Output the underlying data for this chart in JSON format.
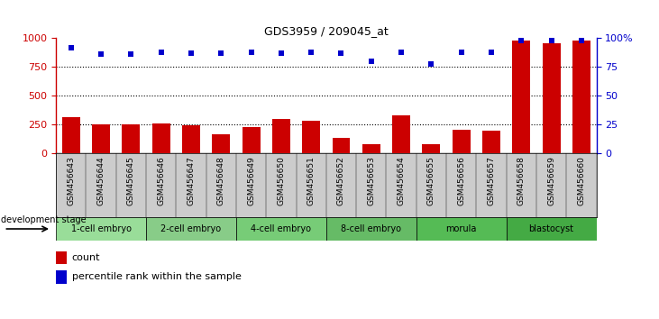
{
  "title": "GDS3959 / 209045_at",
  "samples": [
    "GSM456643",
    "GSM456644",
    "GSM456645",
    "GSM456646",
    "GSM456647",
    "GSM456648",
    "GSM456649",
    "GSM456650",
    "GSM456651",
    "GSM456652",
    "GSM456653",
    "GSM456654",
    "GSM456655",
    "GSM456656",
    "GSM456657",
    "GSM456658",
    "GSM456659",
    "GSM456660"
  ],
  "counts": [
    310,
    250,
    250,
    260,
    245,
    165,
    230,
    300,
    285,
    135,
    80,
    330,
    75,
    200,
    195,
    980,
    960,
    980
  ],
  "percentiles": [
    92,
    86,
    86,
    88,
    87,
    87,
    88,
    87,
    88,
    87,
    80,
    88,
    78,
    88,
    88,
    98,
    98,
    98
  ],
  "stages": [
    {
      "label": "1-cell embryo",
      "start": 0,
      "end": 3,
      "color": "#99dd99"
    },
    {
      "label": "2-cell embryo",
      "start": 3,
      "end": 6,
      "color": "#88cc88"
    },
    {
      "label": "4-cell embryo",
      "start": 6,
      "end": 9,
      "color": "#77cc77"
    },
    {
      "label": "8-cell embryo",
      "start": 9,
      "end": 12,
      "color": "#66bb66"
    },
    {
      "label": "morula",
      "start": 12,
      "end": 15,
      "color": "#55bb55"
    },
    {
      "label": "blastocyst",
      "start": 15,
      "end": 18,
      "color": "#44aa44"
    }
  ],
  "ylim_left": [
    0,
    1000
  ],
  "ylim_right": [
    0,
    100
  ],
  "yticks_left": [
    0,
    250,
    500,
    750,
    1000
  ],
  "yticks_right": [
    0,
    25,
    50,
    75,
    100
  ],
  "bar_color": "#cc0000",
  "dot_color": "#0000cc",
  "background_color": "#ffffff",
  "grid_color": "#000000",
  "sample_bg_color": "#cccccc",
  "stage_text_color": "#000000"
}
